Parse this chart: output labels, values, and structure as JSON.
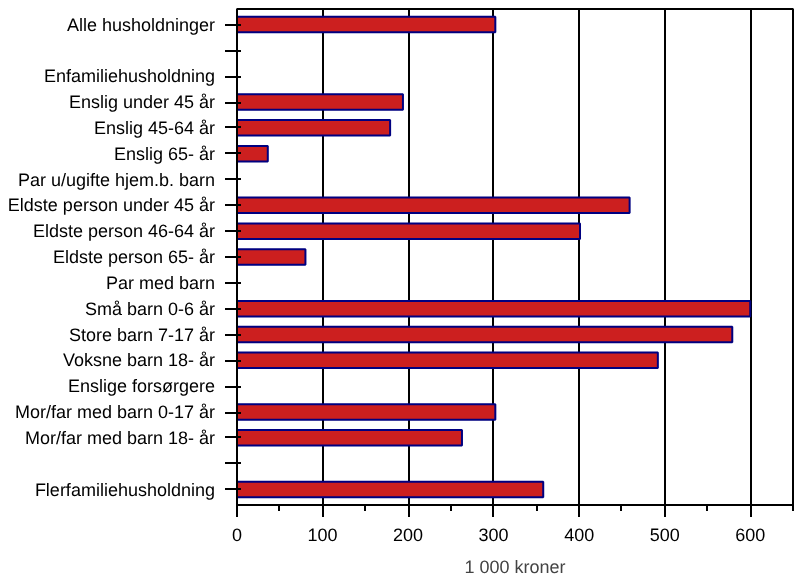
{
  "chart_data": {
    "type": "bar",
    "orientation": "horizontal",
    "xlabel": "1 000 kroner",
    "categories": [
      "Alle husholdninger",
      null,
      "Enfamiliehusholdning",
      "Enslig under 45 år",
      "Enslig 45-64 år",
      "Enslig 65- år",
      "Par u/ugifte hjem.b. barn",
      "Eldste person under 45 år",
      "Eldste person 46-64 år",
      "Eldste person 65- år",
      "Par med barn",
      "Små barn 0-6 år",
      "Store barn 7-17 år",
      "Voksne barn 18- år",
      "Enslige forsørgere",
      "Mor/far med barn 0-17 år",
      "Mor/far med barn 18- år",
      null,
      "Flerfamiliehusholdning"
    ],
    "values": [
      302,
      null,
      null,
      194,
      179,
      36,
      null,
      459,
      401,
      80,
      null,
      600,
      579,
      492,
      null,
      302,
      263,
      null,
      358
    ],
    "color": "#cc1f1f",
    "xlim": [
      0,
      650
    ],
    "xticks": [
      0,
      100,
      200,
      300,
      400,
      500,
      600
    ],
    "grid": "x"
  }
}
